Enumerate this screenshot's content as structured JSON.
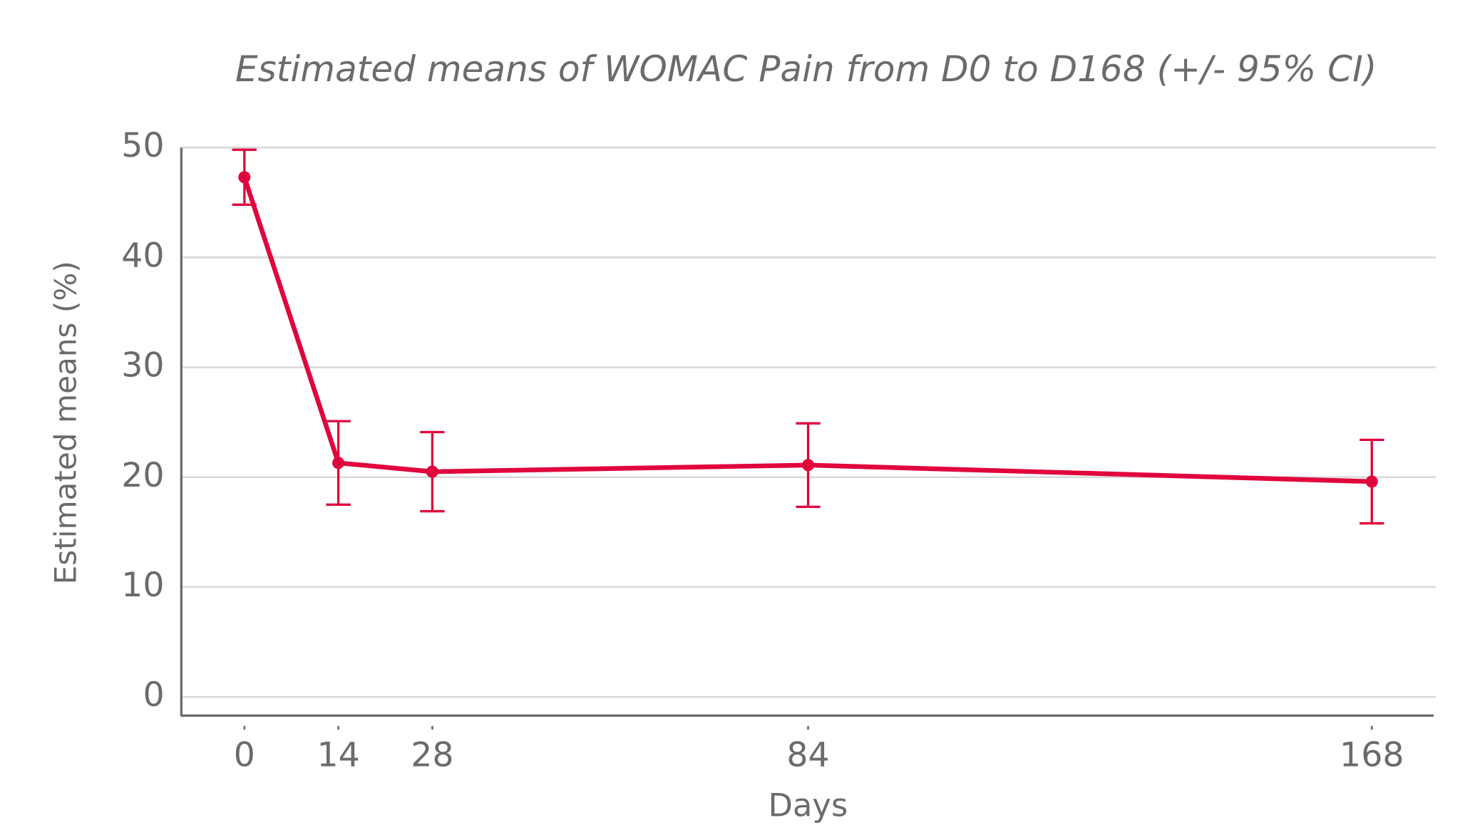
{
  "chart_data": {
    "type": "line",
    "title": "Estimated means of WOMAC Pain from D0 to D168 (+/- 95% CI)",
    "x_label": "Days",
    "y_label": "Estimated means (%)",
    "x": [
      0,
      14,
      28,
      84,
      168
    ],
    "values": [
      47.3,
      21.3,
      20.5,
      21.1,
      19.6
    ],
    "errors": [
      2.5,
      3.8,
      3.6,
      3.8,
      3.8
    ],
    "color": "#e0063d",
    "xlim": [
      -9.4,
      177.5
    ],
    "xticks": [
      0,
      14,
      28,
      84,
      168
    ],
    "ylim": [
      -1.7,
      50
    ],
    "yticks": [
      0,
      10,
      20,
      30,
      40,
      50
    ],
    "grid": true
  }
}
